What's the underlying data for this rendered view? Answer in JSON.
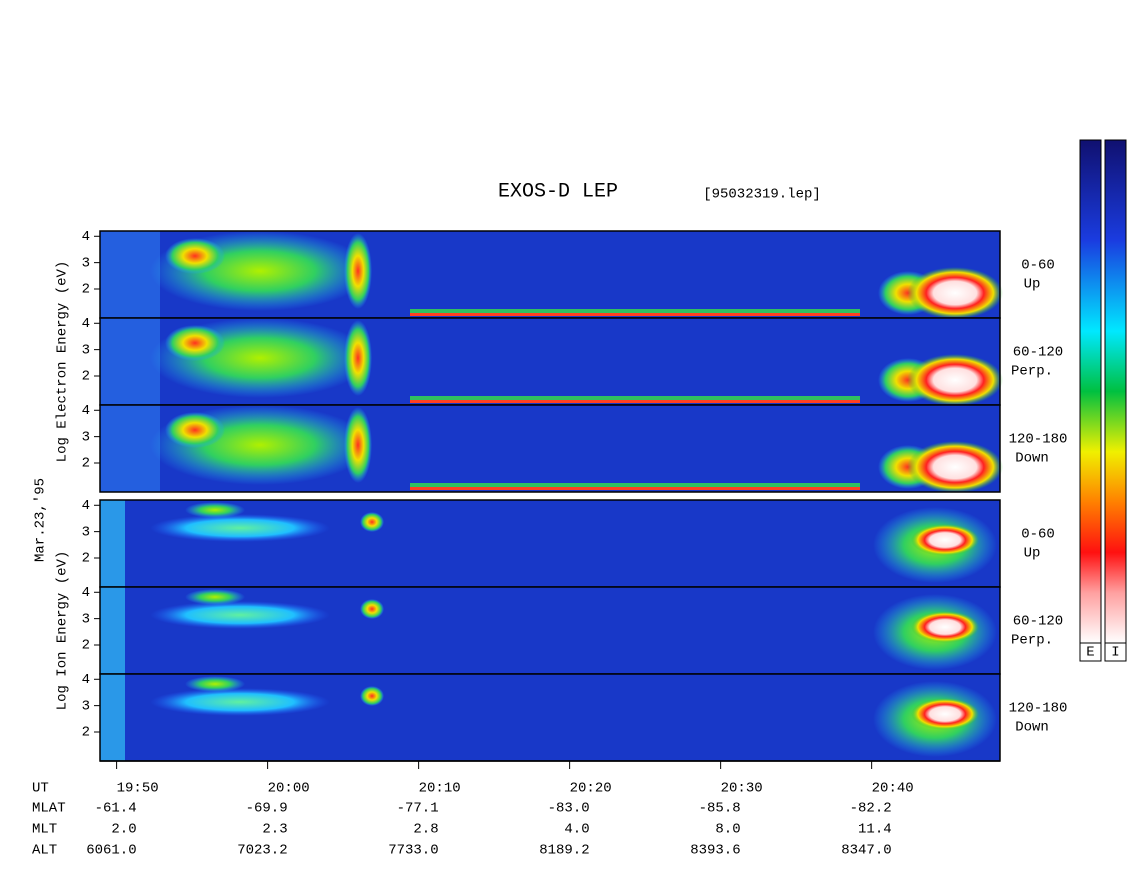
{
  "title": "EXOS-D LEP",
  "file": "[95032319.lep]",
  "date": "Mar.23,'95",
  "energy_axis": {
    "ylim": [
      0.9,
      4.2
    ],
    "yticks": [
      2,
      3,
      4
    ]
  },
  "groups": [
    {
      "label": "Log Electron Energy (eV)",
      "panels": [
        {
          "angle": "0-60",
          "direction": "Up"
        },
        {
          "angle": "60-120",
          "direction": "Perp."
        },
        {
          "angle": "120-180",
          "direction": "Down"
        }
      ]
    },
    {
      "label": "Log Ion Energy (eV)",
      "panels": [
        {
          "angle": "0-60",
          "direction": "Up"
        },
        {
          "angle": "60-120",
          "direction": "Perp."
        },
        {
          "angle": "120-180",
          "direction": "Down"
        }
      ]
    }
  ],
  "time_axis": {
    "xlim": [
      1188.9,
      1248.5
    ],
    "xticks": [
      {
        "value": 1190,
        "label": "19:50"
      },
      {
        "value": 1200,
        "label": "20:00"
      },
      {
        "value": 1210,
        "label": "20:10"
      },
      {
        "value": 1220,
        "label": "20:20"
      },
      {
        "value": 1230,
        "label": "20:30"
      },
      {
        "value": 1240,
        "label": "20:40"
      }
    ],
    "rows": [
      {
        "name": "UT",
        "values": null
      },
      {
        "name": "MLAT",
        "values": [
          "-61.4",
          "-69.9",
          "-77.1",
          "-83.0",
          "-85.8",
          "-82.2"
        ]
      },
      {
        "name": "MLT",
        "values": [
          "2.0",
          "2.3",
          "2.8",
          "4.0",
          "8.0",
          "11.4"
        ]
      },
      {
        "name": "ALT",
        "values": [
          "6061.0",
          "7023.2",
          "7733.0",
          "8189.2",
          "8393.6",
          "8347.0"
        ]
      }
    ]
  },
  "colorbars": [
    {
      "label": "E"
    },
    {
      "label": "I"
    }
  ]
}
